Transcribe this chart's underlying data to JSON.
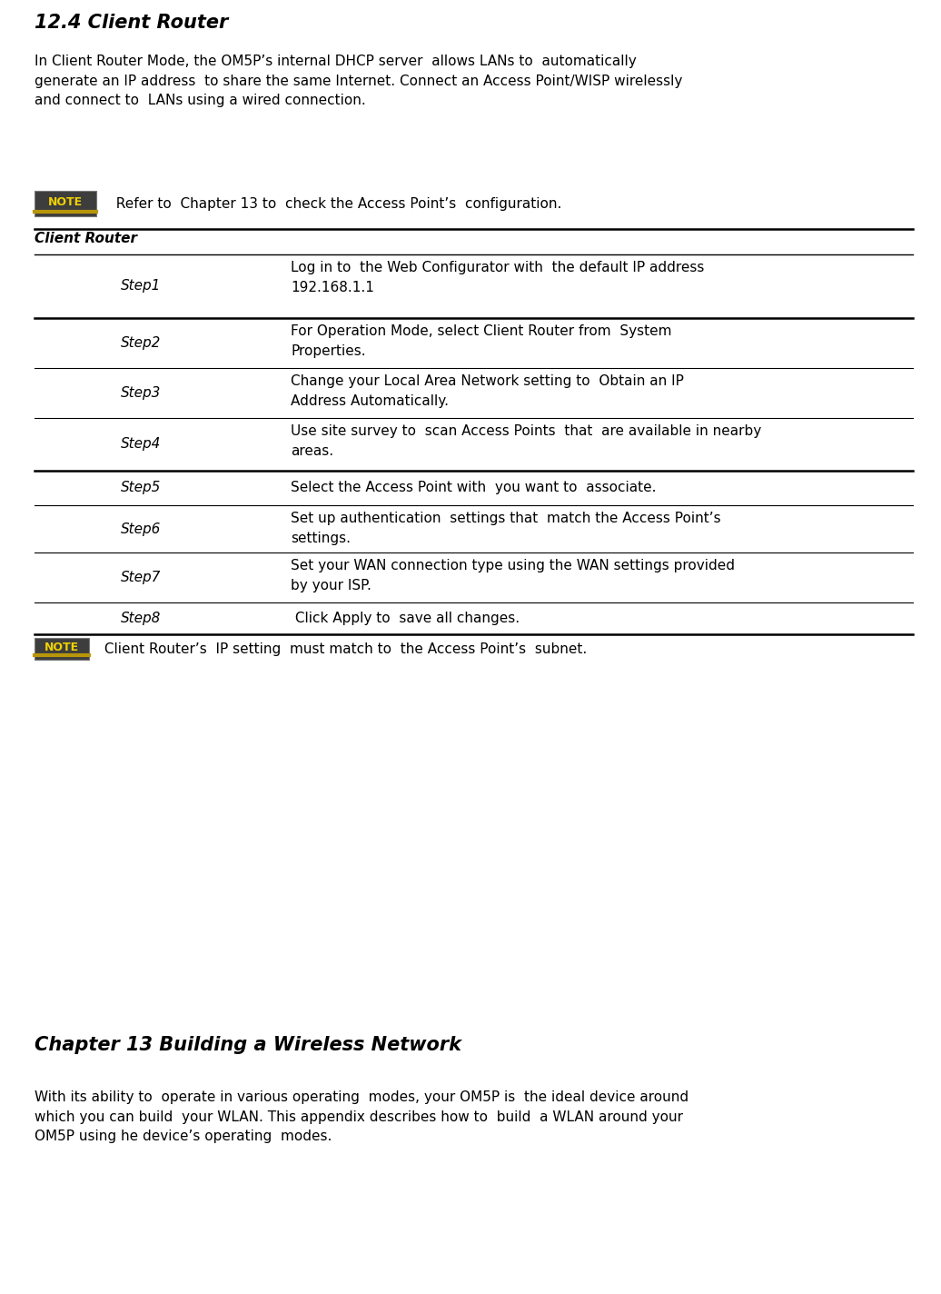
{
  "title": "12.4 Client Router",
  "intro_text": "In Client Router Mode, the OM5P’s internal DHCP server  allows LANs to  automatically\ngenerate an IP address  to share the same Internet. Connect an Access Point/WISP wirelessly\nand connect to  LANs using a wired connection.",
  "note1_text": "  Refer to  Chapter 13 to  check the Access Point’s  configuration.",
  "table_header": "Client Router",
  "steps": [
    [
      "Step1",
      "Log in to  the Web Configurator with  the default IP address\n192.168.1.1"
    ],
    [
      "Step2",
      "For Operation Mode, select Client Router from  System\nProperties."
    ],
    [
      "Step3",
      "Change your Local Area Network setting to  Obtain an IP\nAddress Automatically."
    ],
    [
      "Step4",
      "Use site survey to  scan Access Points  that  are available in nearby\nareas."
    ],
    [
      "Step5",
      "Select the Access Point with  you want to  associate."
    ],
    [
      "Step6",
      "Set up authentication  settings that  match the Access Point’s\nsettings."
    ],
    [
      "Step7",
      "Set your WAN connection type using the WAN settings provided\nby your ISP."
    ],
    [
      "Step8",
      " Click Apply to  save all changes."
    ]
  ],
  "note2_text": " Client Router’s  IP setting  must match to  the Access Point’s  subnet.",
  "chapter_title": "Chapter 13 Building a Wireless Network",
  "chapter_text": "With its ability to  operate in various operating  modes, your OM5P is  the ideal device around\nwhich you can build  your WLAN. This appendix describes how to  build  a WLAN around your\nOM5P using he device’s operating  modes.",
  "bg_color": "#ffffff",
  "text_color": "#000000",
  "title_font_size": 15,
  "body_font_size": 11,
  "step_font_size": 11,
  "chapter_title_font_size": 15,
  "fig_width": 10.36,
  "fig_height": 14.24,
  "dpi": 100
}
